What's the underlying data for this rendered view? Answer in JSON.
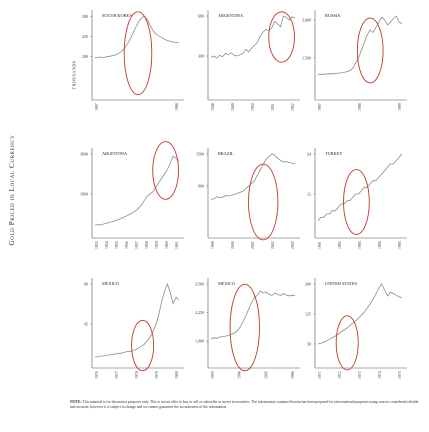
{
  "side_title": "Gold Priced in Local Currency",
  "unit_label": "THOUSANDS",
  "note": {
    "label": "NOTE:",
    "text": "This material is for discussion purposes only. This is not an offer to buy or sell or subscribe or invest in securities. The information contained herein has been prepared for informational purposes using sources considered reliable and accurate, however it is subject to change and we cannot guarantee the accurateness of the information."
  },
  "colors": {
    "line": "#8c8c8c",
    "ellipse": "#c0392b",
    "axis": "#555555"
  },
  "chart_data": [
    {
      "type": "line",
      "title": "SOUTH KOREA",
      "yticks": [
        "580",
        "435",
        "290"
      ],
      "xticks": [
        "1997",
        "1998"
      ],
      "y": [
        280,
        282,
        285,
        281,
        287,
        290,
        295,
        300,
        310,
        325,
        345,
        375,
        410,
        455,
        500,
        540,
        570,
        585,
        560,
        520,
        480,
        455,
        440,
        430,
        415,
        405,
        400,
        395,
        392,
        390
      ]
    },
    {
      "type": "line",
      "title": "ARGENTINA",
      "yticks": [
        "600",
        "300"
      ],
      "xticks": [
        "1948",
        "1949",
        "1950",
        "1951",
        "1952"
      ],
      "y": [
        290,
        300,
        285,
        305,
        295,
        320,
        310,
        325,
        305,
        300,
        310,
        320,
        350,
        330,
        360,
        380,
        400,
        450,
        480,
        500,
        490,
        510,
        560,
        540,
        520,
        600,
        590,
        570,
        595,
        585
      ]
    },
    {
      "type": "line",
      "title": "RUSSIA",
      "yticks": [
        "3,000",
        "1,500"
      ],
      "xticks": [
        "1997",
        "1998",
        "1999"
      ],
      "y": [
        850,
        860,
        855,
        870,
        880,
        875,
        890,
        900,
        910,
        930,
        960,
        1000,
        1100,
        1300,
        1500,
        1800,
        2100,
        2400,
        2600,
        2500,
        2700,
        2900,
        3100,
        3000,
        2800,
        2900,
        3050,
        3150,
        2900,
        2850
      ]
    },
    {
      "type": "line",
      "title": "ARGENTINA",
      "yticks": [
        "3600",
        "1800"
      ],
      "xticks": [
        "1953",
        "1954",
        "1955",
        "1956",
        "1957",
        "1958",
        "1959",
        "1960",
        "1961"
      ],
      "y": [
        400,
        420,
        410,
        450,
        480,
        520,
        560,
        600,
        650,
        700,
        760,
        820,
        880,
        950,
        1050,
        1150,
        1300,
        1500,
        1700,
        1800,
        1900,
        2100,
        2300,
        2500,
        2700,
        2900,
        3200,
        3500,
        3400,
        3300
      ]
    },
    {
      "type": "line",
      "title": "BRAZIL",
      "yticks": [
        "1500",
        "900"
      ],
      "xticks": [
        "1999",
        "2000",
        "2001",
        "2002",
        "2003"
      ],
      "y": [
        650,
        660,
        700,
        680,
        690,
        720,
        710,
        730,
        740,
        760,
        780,
        800,
        850,
        900,
        950,
        1000,
        1100,
        1200,
        1300,
        1400,
        1450,
        1500,
        1480,
        1420,
        1380,
        1350,
        1360,
        1340,
        1330,
        1320
      ]
    },
    {
      "type": "line",
      "title": "TURKEY",
      "yticks": [
        "24",
        "12"
      ],
      "xticks": [
        "1991",
        "1992",
        "1993",
        "1994",
        "1995"
      ],
      "y": [
        4,
        5,
        5,
        6,
        6,
        7,
        7,
        8,
        9,
        9,
        10,
        10,
        11,
        12,
        12,
        13,
        14,
        14,
        15,
        16,
        16,
        17,
        18,
        19,
        20,
        21,
        21,
        22,
        23,
        24
      ]
    },
    {
      "type": "line",
      "title": "MEXICO",
      "yticks": [
        "90",
        "45"
      ],
      "xticks": [
        "1976",
        "1977",
        "1978",
        "1979",
        "1980"
      ],
      "y": [
        8,
        8,
        9,
        9,
        10,
        10,
        11,
        11,
        12,
        12,
        13,
        14,
        14,
        15,
        16,
        18,
        20,
        22,
        26,
        30,
        36,
        44,
        55,
        70,
        82,
        90,
        80,
        68,
        75,
        72
      ]
    },
    {
      "type": "line",
      "title": "MEXICO",
      "yticks": [
        "3,500",
        "2,250",
        "1,000"
      ],
      "xticks": [
        "1993",
        "1994",
        "1995",
        "1996"
      ],
      "y": [
        1100,
        1150,
        1120,
        1180,
        1200,
        1220,
        1250,
        1300,
        1350,
        1450,
        1600,
        1850,
        2100,
        2400,
        2700,
        2900,
        3000,
        3200,
        3100,
        3150,
        3050,
        3000,
        3100,
        3050,
        3000,
        3080,
        3020,
        2980,
        3010,
        2990
      ]
    },
    {
      "type": "line",
      "title": "UNITED STATES",
      "yticks": [
        "200",
        "125",
        "50"
      ],
      "xticks": [
        "1971",
        "1972",
        "1973",
        "1974",
        "1975"
      ],
      "y": [
        50,
        52,
        55,
        58,
        62,
        66,
        70,
        75,
        80,
        85,
        90,
        96,
        102,
        108,
        115,
        122,
        130,
        140,
        150,
        162,
        175,
        190,
        200,
        185,
        170,
        180,
        176,
        172,
        168,
        165
      ]
    }
  ]
}
